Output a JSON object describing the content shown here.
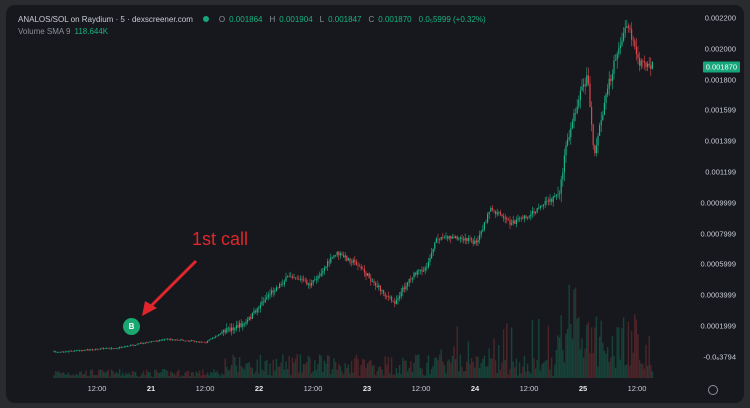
{
  "legend": {
    "title": "ANALOS/SOL on Raydium · 5 · dexscreener.com",
    "o_label": "O",
    "o_value": "0.001864",
    "h_label": "H",
    "h_value": "0.001904",
    "l_label": "L",
    "l_value": "0.001847",
    "c_label": "C",
    "c_value": "0.001870",
    "change": "0.0₅5999 (+0.32%)",
    "volume_label": "Volume SMA 9",
    "volume_value": "118.644K"
  },
  "price_axis": [
    "0.002200",
    "0.002000",
    "0.001800",
    "0.001599",
    "0.001399",
    "0.001199",
    "0.0009999",
    "0.0007999",
    "0.0005999",
    "0.0003999",
    "0.0001999",
    "-0.0₆3794"
  ],
  "current_price": "0.001870",
  "time_axis": [
    {
      "label": "12:00",
      "bold": false
    },
    {
      "label": "21",
      "bold": true
    },
    {
      "label": "12:00",
      "bold": false
    },
    {
      "label": "22",
      "bold": true
    },
    {
      "label": "12:00",
      "bold": false
    },
    {
      "label": "23",
      "bold": true
    },
    {
      "label": "12:00",
      "bold": false
    },
    {
      "label": "24",
      "bold": true
    },
    {
      "label": "12:00",
      "bold": false
    },
    {
      "label": "25",
      "bold": true
    },
    {
      "label": "12:00",
      "bold": false
    }
  ],
  "annotation": "1st call",
  "buy_marker": "B",
  "colors": {
    "up": "#1bb486",
    "down": "#e0474c",
    "accent": "#17a67a",
    "annotation": "#e0262c"
  }
}
